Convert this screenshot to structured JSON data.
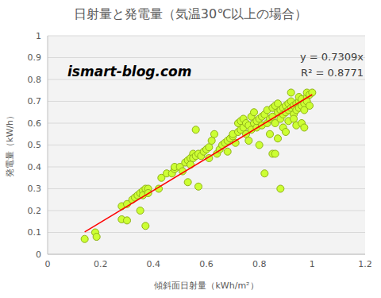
{
  "chart_data": {
    "type": "scatter",
    "title": "日射量と発電量（気温30℃以上の場合）",
    "x_label": "傾斜面日射量（kWh/m²）",
    "y_label": "発電量（kW/h）",
    "annotations": [
      "ismart-blog.com",
      "y = 0.7309x",
      "R² = 0.8771"
    ],
    "xlim": [
      0,
      1.2
    ],
    "xticks": [
      0,
      0.2,
      0.4,
      0.6,
      0.8,
      1,
      1.2
    ],
    "ylim": [
      0,
      1
    ],
    "yticks": [
      0,
      0.1,
      0.2,
      0.3,
      0.4,
      0.5,
      0.6,
      0.7,
      0.8,
      0.9,
      1
    ],
    "grid": "y",
    "series": [
      {
        "type": "scatter",
        "color": "#ccff33",
        "marker": "circle",
        "x": [
          0.14,
          0.18,
          0.185,
          0.28,
          0.3,
          0.28,
          0.3,
          0.32,
          0.33,
          0.34,
          0.35,
          0.36,
          0.37,
          0.38,
          0.36,
          0.35,
          0.37,
          0.38,
          0.42,
          0.43,
          0.45,
          0.47,
          0.48,
          0.48,
          0.5,
          0.51,
          0.52,
          0.53,
          0.53,
          0.54,
          0.54,
          0.55,
          0.55,
          0.56,
          0.56,
          0.57,
          0.57,
          0.58,
          0.59,
          0.6,
          0.61,
          0.61,
          0.62,
          0.63,
          0.64,
          0.65,
          0.66,
          0.67,
          0.68,
          0.68,
          0.69,
          0.7,
          0.7,
          0.71,
          0.72,
          0.72,
          0.73,
          0.73,
          0.74,
          0.74,
          0.75,
          0.75,
          0.76,
          0.76,
          0.77,
          0.77,
          0.78,
          0.78,
          0.79,
          0.79,
          0.8,
          0.8,
          0.81,
          0.81,
          0.82,
          0.82,
          0.83,
          0.83,
          0.84,
          0.84,
          0.85,
          0.85,
          0.85,
          0.86,
          0.86,
          0.86,
          0.87,
          0.87,
          0.87,
          0.88,
          0.88,
          0.88,
          0.89,
          0.89,
          0.89,
          0.9,
          0.9,
          0.9,
          0.91,
          0.91,
          0.91,
          0.92,
          0.92,
          0.92,
          0.93,
          0.93,
          0.93,
          0.94,
          0.94,
          0.94,
          0.95,
          0.95,
          0.95,
          0.96,
          0.96,
          0.96,
          0.97,
          0.97,
          0.97,
          0.98,
          0.98,
          0.98,
          0.99,
          0.99,
          1.0
        ],
        "values": [
          0.07,
          0.1,
          0.08,
          0.16,
          0.155,
          0.22,
          0.23,
          0.25,
          0.26,
          0.27,
          0.28,
          0.29,
          0.3,
          0.3,
          0.27,
          0.2,
          0.13,
          0.28,
          0.3,
          0.35,
          0.37,
          0.37,
          0.39,
          0.4,
          0.4,
          0.38,
          0.42,
          0.43,
          0.33,
          0.44,
          0.41,
          0.46,
          0.44,
          0.45,
          0.57,
          0.46,
          0.31,
          0.45,
          0.47,
          0.48,
          0.49,
          0.44,
          0.52,
          0.55,
          0.46,
          0.48,
          0.5,
          0.51,
          0.52,
          0.47,
          0.53,
          0.54,
          0.55,
          0.51,
          0.56,
          0.6,
          0.61,
          0.57,
          0.58,
          0.62,
          0.6,
          0.55,
          0.59,
          0.52,
          0.63,
          0.57,
          0.6,
          0.65,
          0.58,
          0.61,
          0.62,
          0.5,
          0.59,
          0.63,
          0.64,
          0.37,
          0.6,
          0.66,
          0.62,
          0.55,
          0.67,
          0.46,
          0.63,
          0.68,
          0.6,
          0.46,
          0.65,
          0.69,
          0.53,
          0.66,
          0.62,
          0.3,
          0.67,
          0.64,
          0.58,
          0.68,
          0.65,
          0.56,
          0.66,
          0.69,
          0.61,
          0.7,
          0.67,
          0.74,
          0.64,
          0.68,
          0.62,
          0.69,
          0.66,
          0.59,
          0.7,
          0.67,
          0.72,
          0.68,
          0.6,
          0.71,
          0.69,
          0.66,
          0.58,
          0.72,
          0.74,
          0.7,
          0.73,
          0.68,
          0.74
        ]
      },
      {
        "type": "line",
        "color": "#ff0000",
        "line_style": "solid",
        "x": [
          0.14,
          1.0
        ],
        "values": [
          0.1023,
          0.7309
        ]
      }
    ]
  }
}
